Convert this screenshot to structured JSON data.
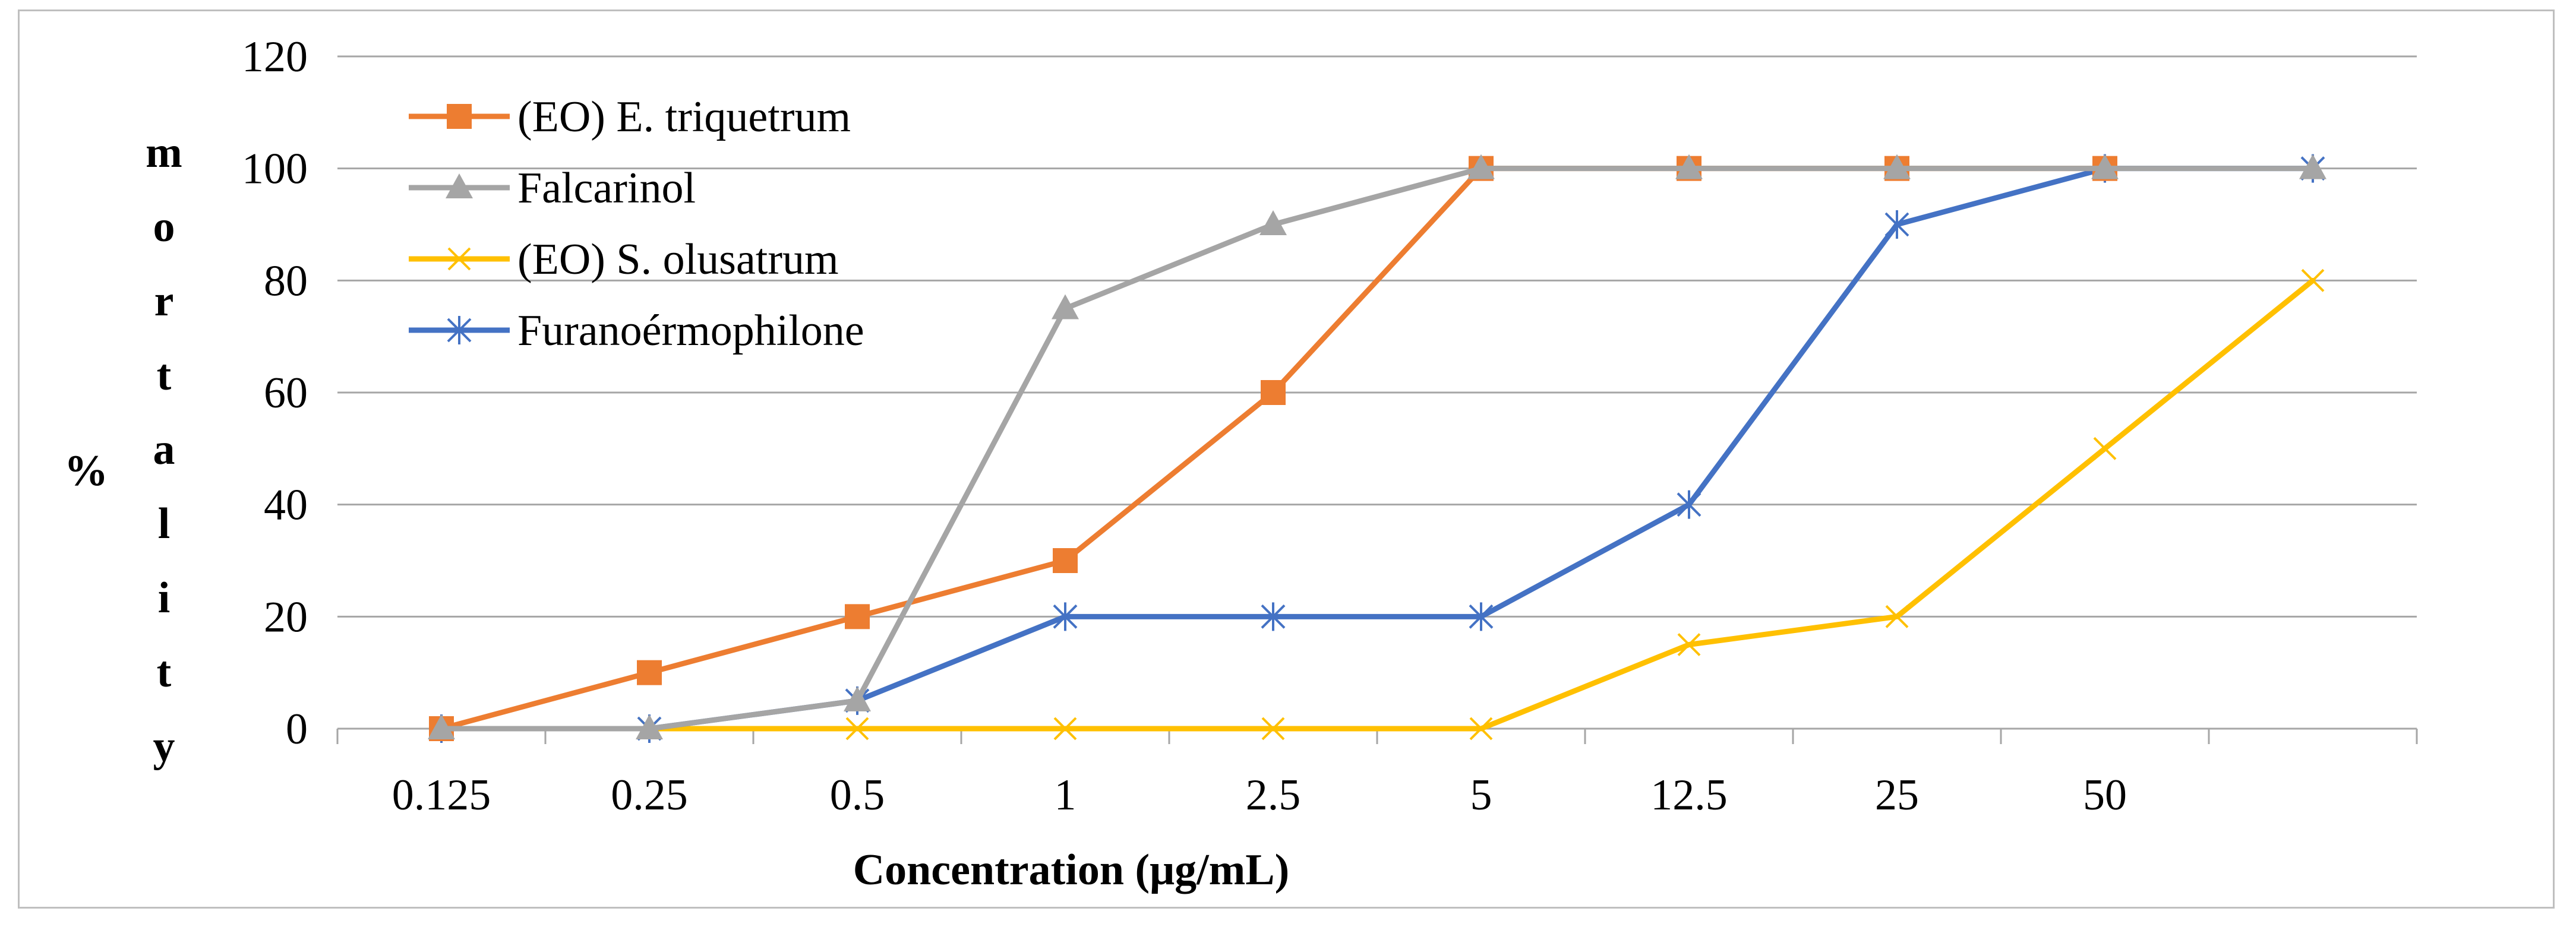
{
  "chart_data": {
    "type": "line",
    "title": "",
    "xlabel": "Concentration (μg/mL)",
    "ylabel_symbol": "%",
    "ylabel_letters": [
      "m",
      "o",
      "r",
      "t",
      "a",
      "l",
      "i",
      "t",
      "y"
    ],
    "categories": [
      "0.125",
      "0.25",
      "0.5",
      "1",
      "2.5",
      "5",
      "12.5",
      "25",
      "50",
      ""
    ],
    "y_ticks": [
      "0",
      "20",
      "40",
      "60",
      "80",
      "100",
      "120"
    ],
    "ylim": [
      0,
      120
    ],
    "grid": true,
    "legend_position": "top-left",
    "series": [
      {
        "name": "(EO) E. triquetrum",
        "color": "#ed7d31",
        "marker": "square",
        "values": [
          0,
          10,
          20,
          30,
          60,
          100,
          100,
          100,
          100,
          null
        ]
      },
      {
        "name": "Falcarinol",
        "color": "#a5a5a5",
        "marker": "triangle",
        "values": [
          0,
          0,
          5,
          75,
          90,
          100,
          100,
          100,
          100,
          100
        ]
      },
      {
        "name": "(EO) S. olusatrum",
        "color": "#ffc000",
        "marker": "x",
        "values": [
          0,
          0,
          0,
          0,
          0,
          0,
          15,
          20,
          50,
          80
        ]
      },
      {
        "name": "Furanoérmophilone",
        "color": "#4472c4",
        "marker": "star",
        "values": [
          0,
          0,
          5,
          20,
          20,
          20,
          40,
          90,
          100,
          100
        ]
      }
    ]
  }
}
